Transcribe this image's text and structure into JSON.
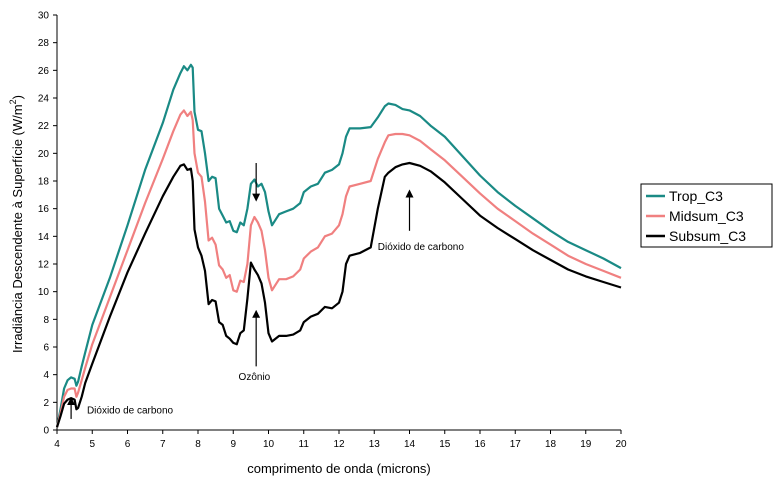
{
  "chart_data": {
    "type": "line",
    "xlabel": "comprimento de onda (microns)",
    "ylabel": "Irradiância Descendente à Superfície (W/m",
    "ylabel_sup": "2",
    "ylabel_close": ")",
    "xlim": [
      4,
      20
    ],
    "ylim": [
      0,
      30
    ],
    "xticks": [
      "4",
      "5",
      "6",
      "7",
      "8",
      "9",
      "10",
      "11",
      "12",
      "13",
      "14",
      "15",
      "16",
      "17",
      "18",
      "19",
      "20"
    ],
    "yticks": [
      "0",
      "2",
      "4",
      "6",
      "8",
      "10",
      "12",
      "14",
      "16",
      "18",
      "20",
      "22",
      "24",
      "26",
      "28",
      "30"
    ],
    "grid": false,
    "legend_position": "right",
    "series": [
      {
        "name": "Trop_C3",
        "color": "#1a8a85",
        "points": [
          [
            4.0,
            0.2
          ],
          [
            4.1,
            1.5
          ],
          [
            4.2,
            3.0
          ],
          [
            4.3,
            3.6
          ],
          [
            4.4,
            3.8
          ],
          [
            4.5,
            3.7
          ],
          [
            4.55,
            3.2
          ],
          [
            4.6,
            3.5
          ],
          [
            4.7,
            4.6
          ],
          [
            4.8,
            5.6
          ],
          [
            5.0,
            7.6
          ],
          [
            5.5,
            11.0
          ],
          [
            6.0,
            14.8
          ],
          [
            6.5,
            18.8
          ],
          [
            7.0,
            22.2
          ],
          [
            7.3,
            24.6
          ],
          [
            7.5,
            25.8
          ],
          [
            7.6,
            26.3
          ],
          [
            7.7,
            26.0
          ],
          [
            7.8,
            26.4
          ],
          [
            7.85,
            26.2
          ],
          [
            7.9,
            23.0
          ],
          [
            8.0,
            21.7
          ],
          [
            8.1,
            21.6
          ],
          [
            8.2,
            20.0
          ],
          [
            8.3,
            18.0
          ],
          [
            8.4,
            18.3
          ],
          [
            8.5,
            18.2
          ],
          [
            8.6,
            16.0
          ],
          [
            8.7,
            15.5
          ],
          [
            8.8,
            15.0
          ],
          [
            8.9,
            15.1
          ],
          [
            9.0,
            14.4
          ],
          [
            9.1,
            14.3
          ],
          [
            9.2,
            15.0
          ],
          [
            9.3,
            14.8
          ],
          [
            9.4,
            16.0
          ],
          [
            9.5,
            17.8
          ],
          [
            9.6,
            18.1
          ],
          [
            9.7,
            17.6
          ],
          [
            9.8,
            17.8
          ],
          [
            9.9,
            17.2
          ],
          [
            10.0,
            15.8
          ],
          [
            10.1,
            14.8
          ],
          [
            10.3,
            15.6
          ],
          [
            10.5,
            15.8
          ],
          [
            10.7,
            16.0
          ],
          [
            10.9,
            16.4
          ],
          [
            11.0,
            17.2
          ],
          [
            11.2,
            17.6
          ],
          [
            11.4,
            17.8
          ],
          [
            11.6,
            18.6
          ],
          [
            11.8,
            18.8
          ],
          [
            12.0,
            19.2
          ],
          [
            12.1,
            20.0
          ],
          [
            12.2,
            21.2
          ],
          [
            12.3,
            21.8
          ],
          [
            12.6,
            21.8
          ],
          [
            12.9,
            21.9
          ],
          [
            13.1,
            22.6
          ],
          [
            13.3,
            23.4
          ],
          [
            13.4,
            23.6
          ],
          [
            13.6,
            23.5
          ],
          [
            13.8,
            23.2
          ],
          [
            14.0,
            23.1
          ],
          [
            14.3,
            22.7
          ],
          [
            14.6,
            22.0
          ],
          [
            15.0,
            21.2
          ],
          [
            15.5,
            19.8
          ],
          [
            16.0,
            18.4
          ],
          [
            16.5,
            17.2
          ],
          [
            17.0,
            16.2
          ],
          [
            17.5,
            15.3
          ],
          [
            18.0,
            14.4
          ],
          [
            18.5,
            13.6
          ],
          [
            19.0,
            13.0
          ],
          [
            19.5,
            12.4
          ],
          [
            20.0,
            11.7
          ]
        ]
      },
      {
        "name": "Midsum_C3",
        "color": "#f08080",
        "points": [
          [
            4.0,
            0.2
          ],
          [
            4.1,
            1.2
          ],
          [
            4.2,
            2.4
          ],
          [
            4.3,
            2.9
          ],
          [
            4.4,
            3.0
          ],
          [
            4.5,
            3.0
          ],
          [
            4.55,
            2.4
          ],
          [
            4.6,
            2.7
          ],
          [
            4.7,
            3.6
          ],
          [
            4.8,
            4.5
          ],
          [
            5.0,
            6.2
          ],
          [
            5.5,
            9.6
          ],
          [
            6.0,
            13.0
          ],
          [
            6.5,
            16.4
          ],
          [
            7.0,
            19.6
          ],
          [
            7.3,
            21.6
          ],
          [
            7.5,
            22.8
          ],
          [
            7.6,
            23.1
          ],
          [
            7.7,
            22.7
          ],
          [
            7.8,
            23.0
          ],
          [
            7.85,
            22.4
          ],
          [
            7.9,
            20.0
          ],
          [
            8.0,
            18.6
          ],
          [
            8.1,
            18.3
          ],
          [
            8.2,
            16.5
          ],
          [
            8.3,
            13.7
          ],
          [
            8.4,
            13.9
          ],
          [
            8.5,
            13.4
          ],
          [
            8.6,
            11.9
          ],
          [
            8.7,
            11.6
          ],
          [
            8.8,
            11.0
          ],
          [
            8.9,
            11.2
          ],
          [
            9.0,
            10.1
          ],
          [
            9.1,
            10.0
          ],
          [
            9.2,
            10.8
          ],
          [
            9.3,
            10.7
          ],
          [
            9.4,
            12.0
          ],
          [
            9.5,
            14.8
          ],
          [
            9.6,
            15.4
          ],
          [
            9.7,
            15.0
          ],
          [
            9.8,
            14.4
          ],
          [
            9.9,
            13.0
          ],
          [
            10.0,
            11.0
          ],
          [
            10.1,
            10.1
          ],
          [
            10.3,
            10.9
          ],
          [
            10.5,
            10.9
          ],
          [
            10.7,
            11.1
          ],
          [
            10.9,
            11.6
          ],
          [
            11.0,
            12.4
          ],
          [
            11.2,
            12.9
          ],
          [
            11.4,
            13.2
          ],
          [
            11.6,
            14.0
          ],
          [
            11.8,
            14.2
          ],
          [
            12.0,
            14.8
          ],
          [
            12.1,
            15.6
          ],
          [
            12.2,
            16.9
          ],
          [
            12.3,
            17.6
          ],
          [
            12.6,
            17.8
          ],
          [
            12.9,
            18.0
          ],
          [
            13.1,
            19.6
          ],
          [
            13.3,
            20.8
          ],
          [
            13.4,
            21.3
          ],
          [
            13.6,
            21.4
          ],
          [
            13.8,
            21.4
          ],
          [
            14.0,
            21.3
          ],
          [
            14.3,
            20.9
          ],
          [
            14.6,
            20.3
          ],
          [
            15.0,
            19.5
          ],
          [
            15.5,
            18.3
          ],
          [
            16.0,
            17.1
          ],
          [
            16.5,
            16.0
          ],
          [
            17.0,
            15.1
          ],
          [
            17.5,
            14.2
          ],
          [
            18.0,
            13.4
          ],
          [
            18.5,
            12.6
          ],
          [
            19.0,
            12.0
          ],
          [
            19.5,
            11.5
          ],
          [
            20.0,
            11.0
          ]
        ]
      },
      {
        "name": "Subsum_C3",
        "color": "#000000",
        "points": [
          [
            4.0,
            0.2
          ],
          [
            4.1,
            1.0
          ],
          [
            4.2,
            1.9
          ],
          [
            4.3,
            2.2
          ],
          [
            4.4,
            2.3
          ],
          [
            4.5,
            2.2
          ],
          [
            4.55,
            1.5
          ],
          [
            4.6,
            1.6
          ],
          [
            4.7,
            2.4
          ],
          [
            4.8,
            3.4
          ],
          [
            5.0,
            4.8
          ],
          [
            5.5,
            8.2
          ],
          [
            6.0,
            11.4
          ],
          [
            6.5,
            14.2
          ],
          [
            7.0,
            16.9
          ],
          [
            7.3,
            18.3
          ],
          [
            7.5,
            19.1
          ],
          [
            7.6,
            19.2
          ],
          [
            7.7,
            18.8
          ],
          [
            7.8,
            18.9
          ],
          [
            7.85,
            18.0
          ],
          [
            7.9,
            14.5
          ],
          [
            8.0,
            13.2
          ],
          [
            8.1,
            12.6
          ],
          [
            8.2,
            11.5
          ],
          [
            8.3,
            9.1
          ],
          [
            8.4,
            9.4
          ],
          [
            8.5,
            9.3
          ],
          [
            8.6,
            7.8
          ],
          [
            8.7,
            7.6
          ],
          [
            8.8,
            6.8
          ],
          [
            8.9,
            6.6
          ],
          [
            9.0,
            6.3
          ],
          [
            9.1,
            6.2
          ],
          [
            9.2,
            7.0
          ],
          [
            9.3,
            7.2
          ],
          [
            9.4,
            9.5
          ],
          [
            9.5,
            12.1
          ],
          [
            9.6,
            11.6
          ],
          [
            9.7,
            11.2
          ],
          [
            9.8,
            10.6
          ],
          [
            9.9,
            9.2
          ],
          [
            10.0,
            7.0
          ],
          [
            10.1,
            6.4
          ],
          [
            10.3,
            6.8
          ],
          [
            10.5,
            6.8
          ],
          [
            10.7,
            6.9
          ],
          [
            10.9,
            7.2
          ],
          [
            11.0,
            7.8
          ],
          [
            11.2,
            8.2
          ],
          [
            11.4,
            8.4
          ],
          [
            11.6,
            8.9
          ],
          [
            11.8,
            8.8
          ],
          [
            12.0,
            9.2
          ],
          [
            12.1,
            10.0
          ],
          [
            12.2,
            12.0
          ],
          [
            12.3,
            12.6
          ],
          [
            12.6,
            12.8
          ],
          [
            12.9,
            13.2
          ],
          [
            13.1,
            16.0
          ],
          [
            13.3,
            18.3
          ],
          [
            13.4,
            18.6
          ],
          [
            13.6,
            19.0
          ],
          [
            13.8,
            19.2
          ],
          [
            14.0,
            19.3
          ],
          [
            14.3,
            19.1
          ],
          [
            14.6,
            18.7
          ],
          [
            15.0,
            17.9
          ],
          [
            15.5,
            16.7
          ],
          [
            16.0,
            15.5
          ],
          [
            16.5,
            14.6
          ],
          [
            17.0,
            13.8
          ],
          [
            17.5,
            13.0
          ],
          [
            18.0,
            12.3
          ],
          [
            18.5,
            11.6
          ],
          [
            19.0,
            11.1
          ],
          [
            19.5,
            10.7
          ],
          [
            20.0,
            10.3
          ]
        ]
      }
    ],
    "annotations": [
      {
        "text": "Dióxido de carbono",
        "x": 4.85,
        "y": 1.2,
        "arrow": {
          "x": 4.4,
          "y0": 0.8,
          "y1": 2.1
        }
      },
      {
        "text": "Ozônio",
        "x": 9.6,
        "y": 3.6,
        "arrow": {
          "x": 9.65,
          "y0": 4.6,
          "y1": 8.4
        }
      },
      {
        "text": "",
        "x": 0,
        "y": 0,
        "arrow": {
          "x": 9.65,
          "y0": 19.3,
          "y1": 16.8
        }
      },
      {
        "text": "Dióxido de carbono",
        "x": 13.1,
        "y": 13.0,
        "arrow": {
          "x": 14.0,
          "y0": 14.4,
          "y1": 17.1
        }
      }
    ]
  }
}
